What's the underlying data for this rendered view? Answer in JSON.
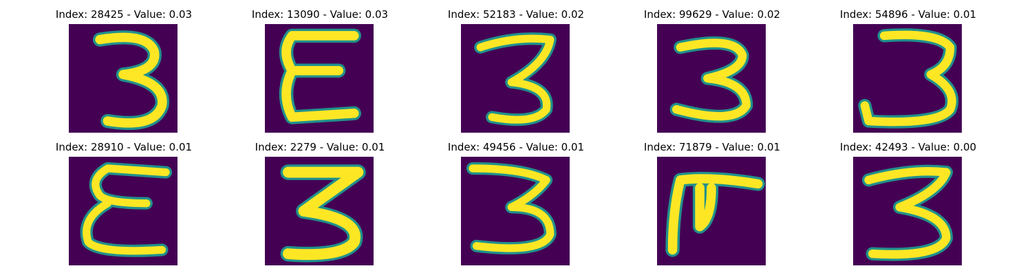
{
  "colors": {
    "background": "#440154",
    "mid": "#21918c",
    "stroke": "#fde725"
  },
  "panels": [
    {
      "title": "Index: 28425 - Value: 0.03",
      "glyph": "3"
    },
    {
      "title": "Index: 13090 - Value: 0.03",
      "glyph": "E"
    },
    {
      "title": "Index: 52183 - Value: 0.02",
      "glyph": "3"
    },
    {
      "title": "Index: 99629 - Value: 0.02",
      "glyph": "3"
    },
    {
      "title": "Index: 54896 - Value: 0.01",
      "glyph": "3"
    },
    {
      "title": "Index: 28910 - Value: 0.01",
      "glyph": "E"
    },
    {
      "title": "Index: 2279 - Value: 0.01",
      "glyph": "3"
    },
    {
      "title": "Index: 49456 - Value: 0.01",
      "glyph": "3"
    },
    {
      "title": "Index: 71879 - Value: 0.01",
      "glyph": "F"
    },
    {
      "title": "Index: 42493 - Value: 0.00",
      "glyph": "3"
    }
  ]
}
